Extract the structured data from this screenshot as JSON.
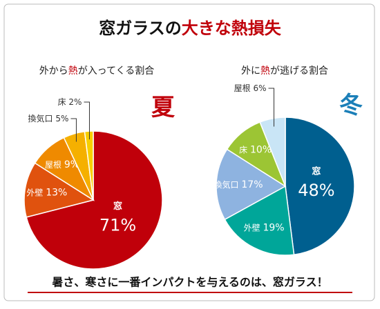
{
  "title": [
    "窓ガラスの",
    "大きな熱損失"
  ],
  "chart_data": [
    {
      "type": "pie",
      "subtitle": [
        "外から",
        "熱",
        "が入ってくる割合"
      ],
      "season": "夏",
      "season_color": "#c0000a",
      "categories": [
        "窓",
        "外壁",
        "屋根",
        "換気口",
        "床"
      ],
      "values": [
        71,
        13,
        9,
        5,
        2
      ],
      "value_labels": [
        "71%",
        "13%",
        "9%",
        "5%",
        "2%"
      ],
      "colors": [
        "#c0000a",
        "#e0520e",
        "#ef8a00",
        "#f5b000",
        "#f8cf00"
      ]
    },
    {
      "type": "pie",
      "subtitle": [
        "外に",
        "熱",
        "が逃げる割合"
      ],
      "season": "冬",
      "season_color": "#1b7fb8",
      "categories": [
        "窓",
        "外壁",
        "換気口",
        "床",
        "屋根"
      ],
      "values": [
        48,
        19,
        17,
        10,
        6
      ],
      "value_labels": [
        "48%",
        "19%",
        "17%",
        "10%",
        "6%"
      ],
      "colors": [
        "#005f8f",
        "#00a699",
        "#8eb3e0",
        "#9cc534",
        "#c9e5f6"
      ]
    }
  ],
  "footer": "暑さ、寒さに一番インパクトを与えるのは、窓ガラス！"
}
